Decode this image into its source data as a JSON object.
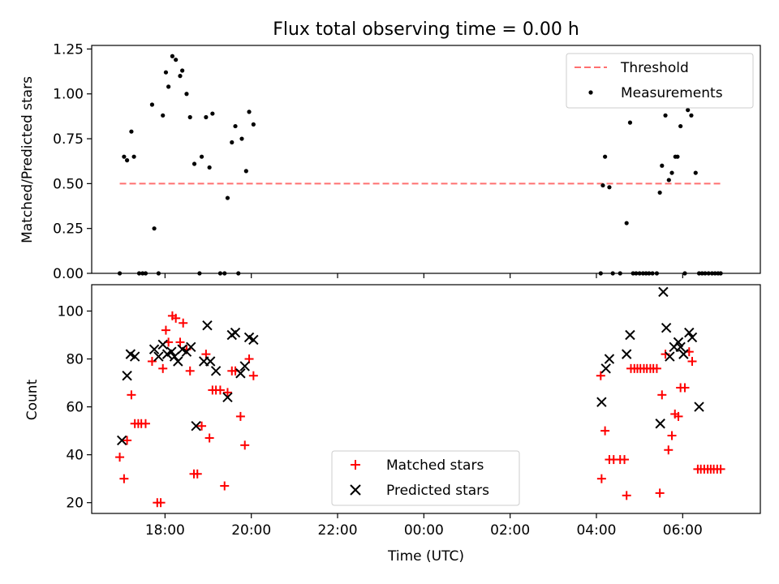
{
  "figure": {
    "title": "Flux total observing time = 0.00 h"
  },
  "colors": {
    "threshold": "#ff7070",
    "measurement": "#000000",
    "matched": "#ff0000",
    "predicted": "#000000",
    "axes": "#000000",
    "background": "#ffffff"
  },
  "chart_data": [
    {
      "type": "scatter",
      "title": "Flux total observing time = 0.00 h",
      "xlabel": "",
      "ylabel": "Matched/Predicted stars",
      "x_unit": "hours since 00:00 UTC (negative = previous evening)",
      "xlim": [
        -7.7,
        7.8
      ],
      "ylim": [
        0,
        1.27
      ],
      "x_ticks": [
        -6,
        -4,
        -2,
        0,
        2,
        4,
        6
      ],
      "y_ticks": [
        0.0,
        0.25,
        0.5,
        0.75,
        1.0,
        1.25
      ],
      "y_tick_labels": [
        "0.00",
        "0.25",
        "0.50",
        "0.75",
        "1.00",
        "1.25"
      ],
      "legend_position": "top-right",
      "grid": false,
      "threshold": {
        "name": "Threshold",
        "value": 0.5,
        "x_range": [
          -7.05,
          6.9
        ],
        "style": "dashed"
      },
      "series": [
        {
          "name": "Measurements",
          "marker": "dot",
          "points": [
            [
              -7.05,
              0.0
            ],
            [
              -6.95,
              0.65
            ],
            [
              -6.88,
              0.63
            ],
            [
              -6.78,
              0.79
            ],
            [
              -6.72,
              0.65
            ],
            [
              -6.6,
              0.0
            ],
            [
              -6.52,
              0.0
            ],
            [
              -6.45,
              0.0
            ],
            [
              -6.3,
              0.94
            ],
            [
              -6.25,
              0.25
            ],
            [
              -6.15,
              0.0
            ],
            [
              -6.05,
              0.88
            ],
            [
              -5.98,
              1.12
            ],
            [
              -5.92,
              1.04
            ],
            [
              -5.83,
              1.21
            ],
            [
              -5.75,
              1.19
            ],
            [
              -5.65,
              1.1
            ],
            [
              -5.6,
              1.13
            ],
            [
              -5.5,
              1.0
            ],
            [
              -5.42,
              0.87
            ],
            [
              -5.32,
              0.61
            ],
            [
              -5.2,
              0.0
            ],
            [
              -5.15,
              0.65
            ],
            [
              -5.05,
              0.87
            ],
            [
              -4.97,
              0.59
            ],
            [
              -4.9,
              0.89
            ],
            [
              -4.72,
              0.0
            ],
            [
              -4.62,
              0.0
            ],
            [
              -4.55,
              0.42
            ],
            [
              -4.45,
              0.73
            ],
            [
              -4.37,
              0.82
            ],
            [
              -4.3,
              0.0
            ],
            [
              -4.22,
              0.75
            ],
            [
              -4.12,
              0.57
            ],
            [
              -4.05,
              0.9
            ],
            [
              -3.95,
              0.83
            ],
            [
              4.1,
              0.0
            ],
            [
              4.15,
              0.49
            ],
            [
              4.2,
              0.65
            ],
            [
              4.3,
              0.48
            ],
            [
              4.38,
              0.0
            ],
            [
              4.55,
              0.0
            ],
            [
              4.7,
              0.28
            ],
            [
              4.78,
              0.84
            ],
            [
              4.85,
              0.0
            ],
            [
              4.92,
              0.0
            ],
            [
              5.0,
              0.0
            ],
            [
              5.08,
              0.0
            ],
            [
              5.15,
              0.0
            ],
            [
              5.22,
              0.0
            ],
            [
              5.3,
              0.0
            ],
            [
              5.4,
              0.0
            ],
            [
              5.47,
              0.45
            ],
            [
              5.52,
              0.6
            ],
            [
              5.6,
              0.88
            ],
            [
              5.68,
              0.52
            ],
            [
              5.75,
              0.56
            ],
            [
              5.83,
              0.65
            ],
            [
              5.88,
              0.65
            ],
            [
              5.95,
              0.82
            ],
            [
              6.05,
              0.0
            ],
            [
              6.12,
              0.91
            ],
            [
              6.2,
              0.88
            ],
            [
              6.3,
              0.56
            ],
            [
              6.38,
              0.0
            ],
            [
              6.45,
              0.0
            ],
            [
              6.52,
              0.0
            ],
            [
              6.6,
              0.0
            ],
            [
              6.68,
              0.0
            ],
            [
              6.75,
              0.0
            ],
            [
              6.82,
              0.0
            ],
            [
              6.88,
              0.0
            ]
          ]
        }
      ]
    },
    {
      "type": "scatter",
      "title": "",
      "xlabel": "Time (UTC)",
      "ylabel": "Count",
      "x_unit": "hours since 00:00 UTC (negative = previous evening)",
      "xlim": [
        -7.7,
        7.8
      ],
      "ylim": [
        15.5,
        111
      ],
      "x_ticks": [
        -6,
        -4,
        -2,
        0,
        2,
        4,
        6
      ],
      "x_tick_labels": [
        "18:00",
        "20:00",
        "22:00",
        "00:00",
        "02:00",
        "04:00",
        "06:00"
      ],
      "y_ticks": [
        20,
        40,
        60,
        80,
        100
      ],
      "y_tick_labels": [
        "20",
        "40",
        "60",
        "80",
        "100"
      ],
      "legend_position": "bottom-center",
      "grid": false,
      "series": [
        {
          "name": "Matched stars",
          "marker": "plus",
          "points": [
            [
              -7.05,
              39
            ],
            [
              -6.95,
              30
            ],
            [
              -6.88,
              46
            ],
            [
              -6.78,
              65
            ],
            [
              -6.7,
              53
            ],
            [
              -6.62,
              53
            ],
            [
              -6.55,
              53
            ],
            [
              -6.45,
              53
            ],
            [
              -6.3,
              79
            ],
            [
              -6.18,
              20
            ],
            [
              -6.1,
              20
            ],
            [
              -6.05,
              76
            ],
            [
              -5.98,
              92
            ],
            [
              -5.92,
              87
            ],
            [
              -5.83,
              98
            ],
            [
              -5.75,
              97
            ],
            [
              -5.65,
              87
            ],
            [
              -5.58,
              95
            ],
            [
              -5.5,
              84
            ],
            [
              -5.42,
              75
            ],
            [
              -5.33,
              32
            ],
            [
              -5.25,
              32
            ],
            [
              -5.15,
              52
            ],
            [
              -5.05,
              82
            ],
            [
              -4.97,
              47
            ],
            [
              -4.9,
              67
            ],
            [
              -4.82,
              67
            ],
            [
              -4.72,
              67
            ],
            [
              -4.62,
              27
            ],
            [
              -4.55,
              66
            ],
            [
              -4.45,
              75
            ],
            [
              -4.37,
              75
            ],
            [
              -4.25,
              56
            ],
            [
              -4.15,
              44
            ],
            [
              -4.05,
              80
            ],
            [
              -3.95,
              73
            ],
            [
              4.1,
              73
            ],
            [
              4.12,
              30
            ],
            [
              4.2,
              50
            ],
            [
              4.3,
              38
            ],
            [
              4.4,
              38
            ],
            [
              4.55,
              38
            ],
            [
              4.65,
              38
            ],
            [
              4.7,
              23
            ],
            [
              4.8,
              76
            ],
            [
              4.88,
              76
            ],
            [
              4.95,
              76
            ],
            [
              5.02,
              76
            ],
            [
              5.1,
              76
            ],
            [
              5.17,
              76
            ],
            [
              5.25,
              76
            ],
            [
              5.32,
              76
            ],
            [
              5.4,
              76
            ],
            [
              5.47,
              24
            ],
            [
              5.52,
              65
            ],
            [
              5.6,
              82
            ],
            [
              5.67,
              42
            ],
            [
              5.75,
              48
            ],
            [
              5.82,
              57
            ],
            [
              5.9,
              56
            ],
            [
              5.95,
              68
            ],
            [
              6.05,
              68
            ],
            [
              6.15,
              83
            ],
            [
              6.22,
              79
            ],
            [
              6.35,
              34
            ],
            [
              6.42,
              34
            ],
            [
              6.5,
              34
            ],
            [
              6.58,
              34
            ],
            [
              6.65,
              34
            ],
            [
              6.72,
              34
            ],
            [
              6.8,
              34
            ],
            [
              6.88,
              34
            ]
          ]
        },
        {
          "name": "Predicted stars",
          "marker": "x",
          "points": [
            [
              -7.0,
              46
            ],
            [
              -6.88,
              73
            ],
            [
              -6.8,
              82
            ],
            [
              -6.7,
              81
            ],
            [
              -6.25,
              84
            ],
            [
              -6.15,
              81
            ],
            [
              -6.05,
              86
            ],
            [
              -5.95,
              82
            ],
            [
              -5.85,
              83
            ],
            [
              -5.78,
              81
            ],
            [
              -5.7,
              79
            ],
            [
              -5.6,
              84
            ],
            [
              -5.5,
              83
            ],
            [
              -5.4,
              85
            ],
            [
              -5.28,
              52
            ],
            [
              -5.1,
              79
            ],
            [
              -5.02,
              94
            ],
            [
              -4.95,
              79
            ],
            [
              -4.82,
              75
            ],
            [
              -4.55,
              64
            ],
            [
              -4.45,
              90
            ],
            [
              -4.37,
              91
            ],
            [
              -4.25,
              74
            ],
            [
              -4.15,
              77
            ],
            [
              -4.05,
              89
            ],
            [
              -3.95,
              88
            ],
            [
              4.12,
              62
            ],
            [
              4.22,
              76
            ],
            [
              4.3,
              80
            ],
            [
              4.7,
              82
            ],
            [
              4.78,
              90
            ],
            [
              5.48,
              53
            ],
            [
              5.55,
              108
            ],
            [
              5.62,
              93
            ],
            [
              5.7,
              81
            ],
            [
              5.8,
              85
            ],
            [
              5.9,
              87
            ],
            [
              5.95,
              85
            ],
            [
              6.02,
              82
            ],
            [
              6.15,
              91
            ],
            [
              6.22,
              89
            ],
            [
              6.38,
              60
            ]
          ]
        }
      ]
    }
  ]
}
